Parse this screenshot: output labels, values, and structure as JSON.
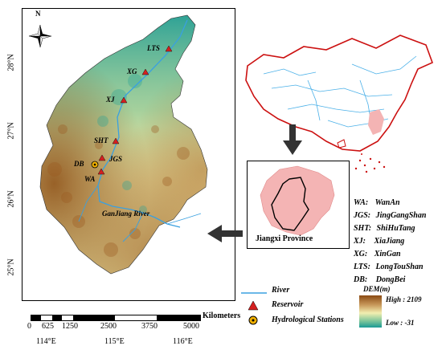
{
  "map": {
    "x_ticks": [
      "114°E",
      "115°E",
      "116°E"
    ],
    "y_ticks": [
      "28°N",
      "27°N",
      "26°N",
      "25°N"
    ],
    "north": "N",
    "river_label": "GanJiang River",
    "reservoir_labels": [
      "LTS",
      "XG",
      "XJ",
      "SHT",
      "JGS",
      "WA"
    ],
    "station_label": "DB"
  },
  "scale_bar": {
    "unit": "Kilometers",
    "ticks": [
      "0",
      "625",
      "1250",
      "2500",
      "3750",
      "5000"
    ]
  },
  "inset": {
    "province_label": "Jiangxi Province"
  },
  "abbreviations": [
    {
      "code": "WA:",
      "name": "WanAn"
    },
    {
      "code": "JGS:",
      "name": "JingGangShan"
    },
    {
      "code": "SHT:",
      "name": "ShiHuTang"
    },
    {
      "code": "XJ:",
      "name": "XiaJiang"
    },
    {
      "code": "XG:",
      "name": "XinGan"
    },
    {
      "code": "LTS:",
      "name": "LongTouShan"
    },
    {
      "code": "DB:",
      "name": "DongBei"
    }
  ],
  "legend": {
    "river": "River",
    "reservoir": "Reservoir",
    "station": "Hydrological Stations",
    "dem_title": "DEM(m)",
    "dem_high": "High : 2109",
    "dem_low": "Low : -31"
  },
  "colors": {
    "river": "#3aa0e0",
    "reservoir": "#d42020",
    "station": "#f0b000",
    "dem_low": "#1a9a95",
    "dem_mid": "#f2eeb0",
    "dem_high": "#8a4a12",
    "inset_fill": "#f4b4b4",
    "china_outline": "#cc1111"
  }
}
